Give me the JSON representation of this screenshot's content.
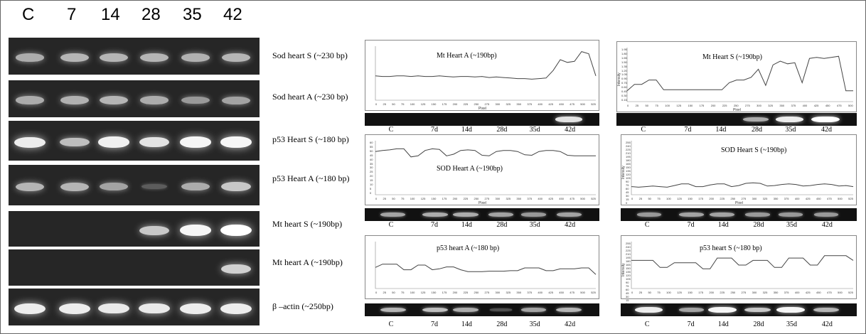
{
  "lanes": [
    "C",
    "7",
    "14",
    "28",
    "35",
    "42"
  ],
  "gels": [
    {
      "label": "Sod heart  S (~230 bp)",
      "intensity": [
        0.55,
        0.6,
        0.6,
        0.6,
        0.58,
        0.6
      ]
    },
    {
      "label": "Sod heart  A (~230 bp)",
      "intensity": [
        0.55,
        0.58,
        0.6,
        0.55,
        0.45,
        0.5
      ]
    },
    {
      "label": "p53 Heart S (~180 bp)",
      "intensity": [
        0.9,
        0.65,
        0.92,
        0.85,
        0.95,
        0.95
      ]
    },
    {
      "label": "p53 Heart A (~180 bp)",
      "intensity": [
        0.6,
        0.6,
        0.5,
        0.12,
        0.55,
        0.7
      ]
    },
    {
      "label": "Mt heart S (~190bp)",
      "intensity": [
        0.0,
        0.0,
        0.0,
        0.7,
        0.95,
        1.0
      ]
    },
    {
      "label": "Mt heart A (~190bp)",
      "intensity": [
        0.0,
        0.0,
        0.0,
        0.0,
        0.0,
        0.75
      ]
    },
    {
      "label": "β –actin  (~250bp)",
      "intensity": [
        0.9,
        0.9,
        0.88,
        0.88,
        0.9,
        0.9
      ]
    }
  ],
  "densitometry": [
    {
      "title": "Mt  Heart  A (~190bp)",
      "axes": true,
      "ylabel": "",
      "xlabel": "Pixel",
      "profile": [
        0.45,
        0.44,
        0.44,
        0.45,
        0.45,
        0.44,
        0.45,
        0.44,
        0.44,
        0.45,
        0.44,
        0.43,
        0.44,
        0.44,
        0.43,
        0.44,
        0.42,
        0.43,
        0.42,
        0.41,
        0.4,
        0.4,
        0.39,
        0.4,
        0.41,
        0.55,
        0.75,
        0.7,
        0.72,
        0.9,
        0.86,
        0.45
      ],
      "bands": [
        0,
        0,
        0,
        0,
        0,
        0.85
      ],
      "xticks": [
        "0",
        "25",
        "50",
        "75",
        "100",
        "125",
        "150",
        "175",
        "200",
        "225",
        "250",
        "275",
        "300",
        "325",
        "350",
        "375",
        "400",
        "425",
        "450",
        "475",
        "500",
        "525"
      ],
      "dlabels": [
        "C",
        "7d",
        "14d",
        "28d",
        "35d",
        "42d"
      ]
    },
    {
      "title": "Mt  Heart  S (~190bp)",
      "axes": true,
      "ylabel": "Intensity",
      "xlabel": "Pixel",
      "profile": [
        0.2,
        0.32,
        0.32,
        0.4,
        0.4,
        0.22,
        0.22,
        0.22,
        0.22,
        0.22,
        0.22,
        0.22,
        0.22,
        0.22,
        0.35,
        0.4,
        0.4,
        0.45,
        0.6,
        0.3,
        0.68,
        0.75,
        0.7,
        0.72,
        0.35,
        0.8,
        0.82,
        0.8,
        0.82,
        0.84,
        0.2,
        0.2
      ],
      "bands": [
        0,
        0,
        0,
        0.55,
        0.9,
        1.0
      ],
      "yticks": [
        "1.95",
        "1.80",
        "1.65",
        "1.50",
        "1.35",
        "1.20",
        "1.05",
        "0.90",
        "0.75",
        "0.60",
        "0.45",
        "0.30",
        "0.15"
      ],
      "xticks": [
        "0",
        "25",
        "50",
        "75",
        "100",
        "125",
        "150",
        "175",
        "200",
        "225",
        "250",
        "275",
        "300",
        "325",
        "350",
        "375",
        "400",
        "425",
        "450",
        "475",
        "500"
      ],
      "dlabels": [
        "C",
        "7d",
        "14d",
        "28d",
        "35d",
        "42d"
      ]
    },
    {
      "title": "SOD Heart  A (~190bp)",
      "axes": true,
      "ylabel": "",
      "xlabel": "Pixel",
      "profile": [
        0.8,
        0.82,
        0.83,
        0.85,
        0.85,
        0.7,
        0.72,
        0.82,
        0.85,
        0.84,
        0.72,
        0.75,
        0.82,
        0.83,
        0.82,
        0.73,
        0.72,
        0.8,
        0.82,
        0.82,
        0.8,
        0.74,
        0.73,
        0.8,
        0.82,
        0.82,
        0.8,
        0.73,
        0.72,
        0.72,
        0.72,
        0.72
      ],
      "bands": [
        0.5,
        0.55,
        0.55,
        0.5,
        0.45,
        0.5
      ],
      "yticks": [
        "60",
        "55",
        "50",
        "45",
        "40",
        "35",
        "30",
        "25",
        "20",
        "15",
        "10",
        "5",
        "0"
      ],
      "xticks": [
        "0",
        "25",
        "50",
        "75",
        "100",
        "125",
        "150",
        "175",
        "200",
        "225",
        "250",
        "275",
        "300",
        "325",
        "350",
        "375",
        "400",
        "425",
        "450",
        "475",
        "500",
        "525"
      ],
      "dlabels": [
        "C",
        "7d",
        "14d",
        "28d",
        "35d",
        "42d"
      ]
    },
    {
      "title": "SOD Heart  S (~190bp)",
      "axes": true,
      "ylabel": "Intensity",
      "xlabel": "Pixel",
      "profile": [
        0.15,
        0.14,
        0.15,
        0.16,
        0.15,
        0.14,
        0.17,
        0.2,
        0.2,
        0.15,
        0.15,
        0.18,
        0.2,
        0.2,
        0.15,
        0.17,
        0.21,
        0.22,
        0.21,
        0.16,
        0.17,
        0.19,
        0.2,
        0.19,
        0.16,
        0.17,
        0.19,
        0.2,
        0.19,
        0.16,
        0.17,
        0.15
      ],
      "bands": [
        0.45,
        0.5,
        0.5,
        0.45,
        0.45,
        0.45
      ],
      "yticks": [
        "255",
        "240",
        "225",
        "210",
        "195",
        "180",
        "165",
        "150",
        "135",
        "120",
        "105",
        "90",
        "75",
        "60",
        "45",
        "30",
        "15",
        "0"
      ],
      "xticks": [
        "0",
        "25",
        "50",
        "75",
        "100",
        "125",
        "150",
        "175",
        "200",
        "225",
        "250",
        "275",
        "300",
        "325",
        "350",
        "375",
        "400",
        "425",
        "450",
        "475",
        "500",
        "525"
      ],
      "dlabels": [
        "C",
        "7d",
        "14d",
        "28d",
        "35d",
        "42d"
      ]
    },
    {
      "title": "p53  heart  A (~180 bp)",
      "axes": true,
      "ylabel": "",
      "xlabel": "",
      "profile": [
        0.45,
        0.52,
        0.52,
        0.52,
        0.4,
        0.4,
        0.5,
        0.5,
        0.4,
        0.42,
        0.46,
        0.46,
        0.4,
        0.36,
        0.36,
        0.36,
        0.37,
        0.37,
        0.37,
        0.38,
        0.38,
        0.44,
        0.44,
        0.44,
        0.38,
        0.38,
        0.42,
        0.42,
        0.42,
        0.44,
        0.44,
        0.3
      ],
      "bands": [
        0.6,
        0.65,
        0.55,
        0.05,
        0.5,
        0.6
      ],
      "yticks": [],
      "xticks": [
        "0",
        "25",
        "50",
        "75",
        "100",
        "125",
        "150",
        "175",
        "200",
        "225",
        "250",
        "275",
        "300",
        "325",
        "350",
        "375",
        "400",
        "425",
        "450",
        "475",
        "500",
        "525"
      ],
      "dlabels": [
        "C",
        "7d",
        "14d",
        "28d",
        "35d",
        "42d"
      ]
    },
    {
      "title": "p53  heart  S (~180 bp)",
      "axes": true,
      "ylabel": "Intensity",
      "xlabel": "",
      "profile": [
        0.6,
        0.6,
        0.6,
        0.6,
        0.45,
        0.45,
        0.55,
        0.55,
        0.55,
        0.55,
        0.42,
        0.42,
        0.65,
        0.65,
        0.65,
        0.5,
        0.5,
        0.6,
        0.6,
        0.6,
        0.45,
        0.45,
        0.65,
        0.65,
        0.65,
        0.5,
        0.5,
        0.7,
        0.7,
        0.7,
        0.7,
        0.6
      ],
      "bands": [
        0.9,
        0.5,
        0.95,
        0.7,
        0.95,
        0.6
      ],
      "yticks": [
        "255",
        "240",
        "225",
        "210",
        "195",
        "180",
        "165",
        "150",
        "135",
        "120",
        "105",
        "90",
        "75",
        "60",
        "45",
        "30",
        "15",
        "0"
      ],
      "xticks": [
        "0",
        "25",
        "50",
        "75",
        "100",
        "125",
        "150",
        "175",
        "200",
        "225",
        "250",
        "275",
        "300",
        "325",
        "350",
        "375",
        "400",
        "425",
        "450",
        "475",
        "500",
        "525"
      ],
      "dlabels": [
        "C",
        "7d",
        "14d",
        "28d",
        "35d",
        "42d"
      ]
    }
  ]
}
